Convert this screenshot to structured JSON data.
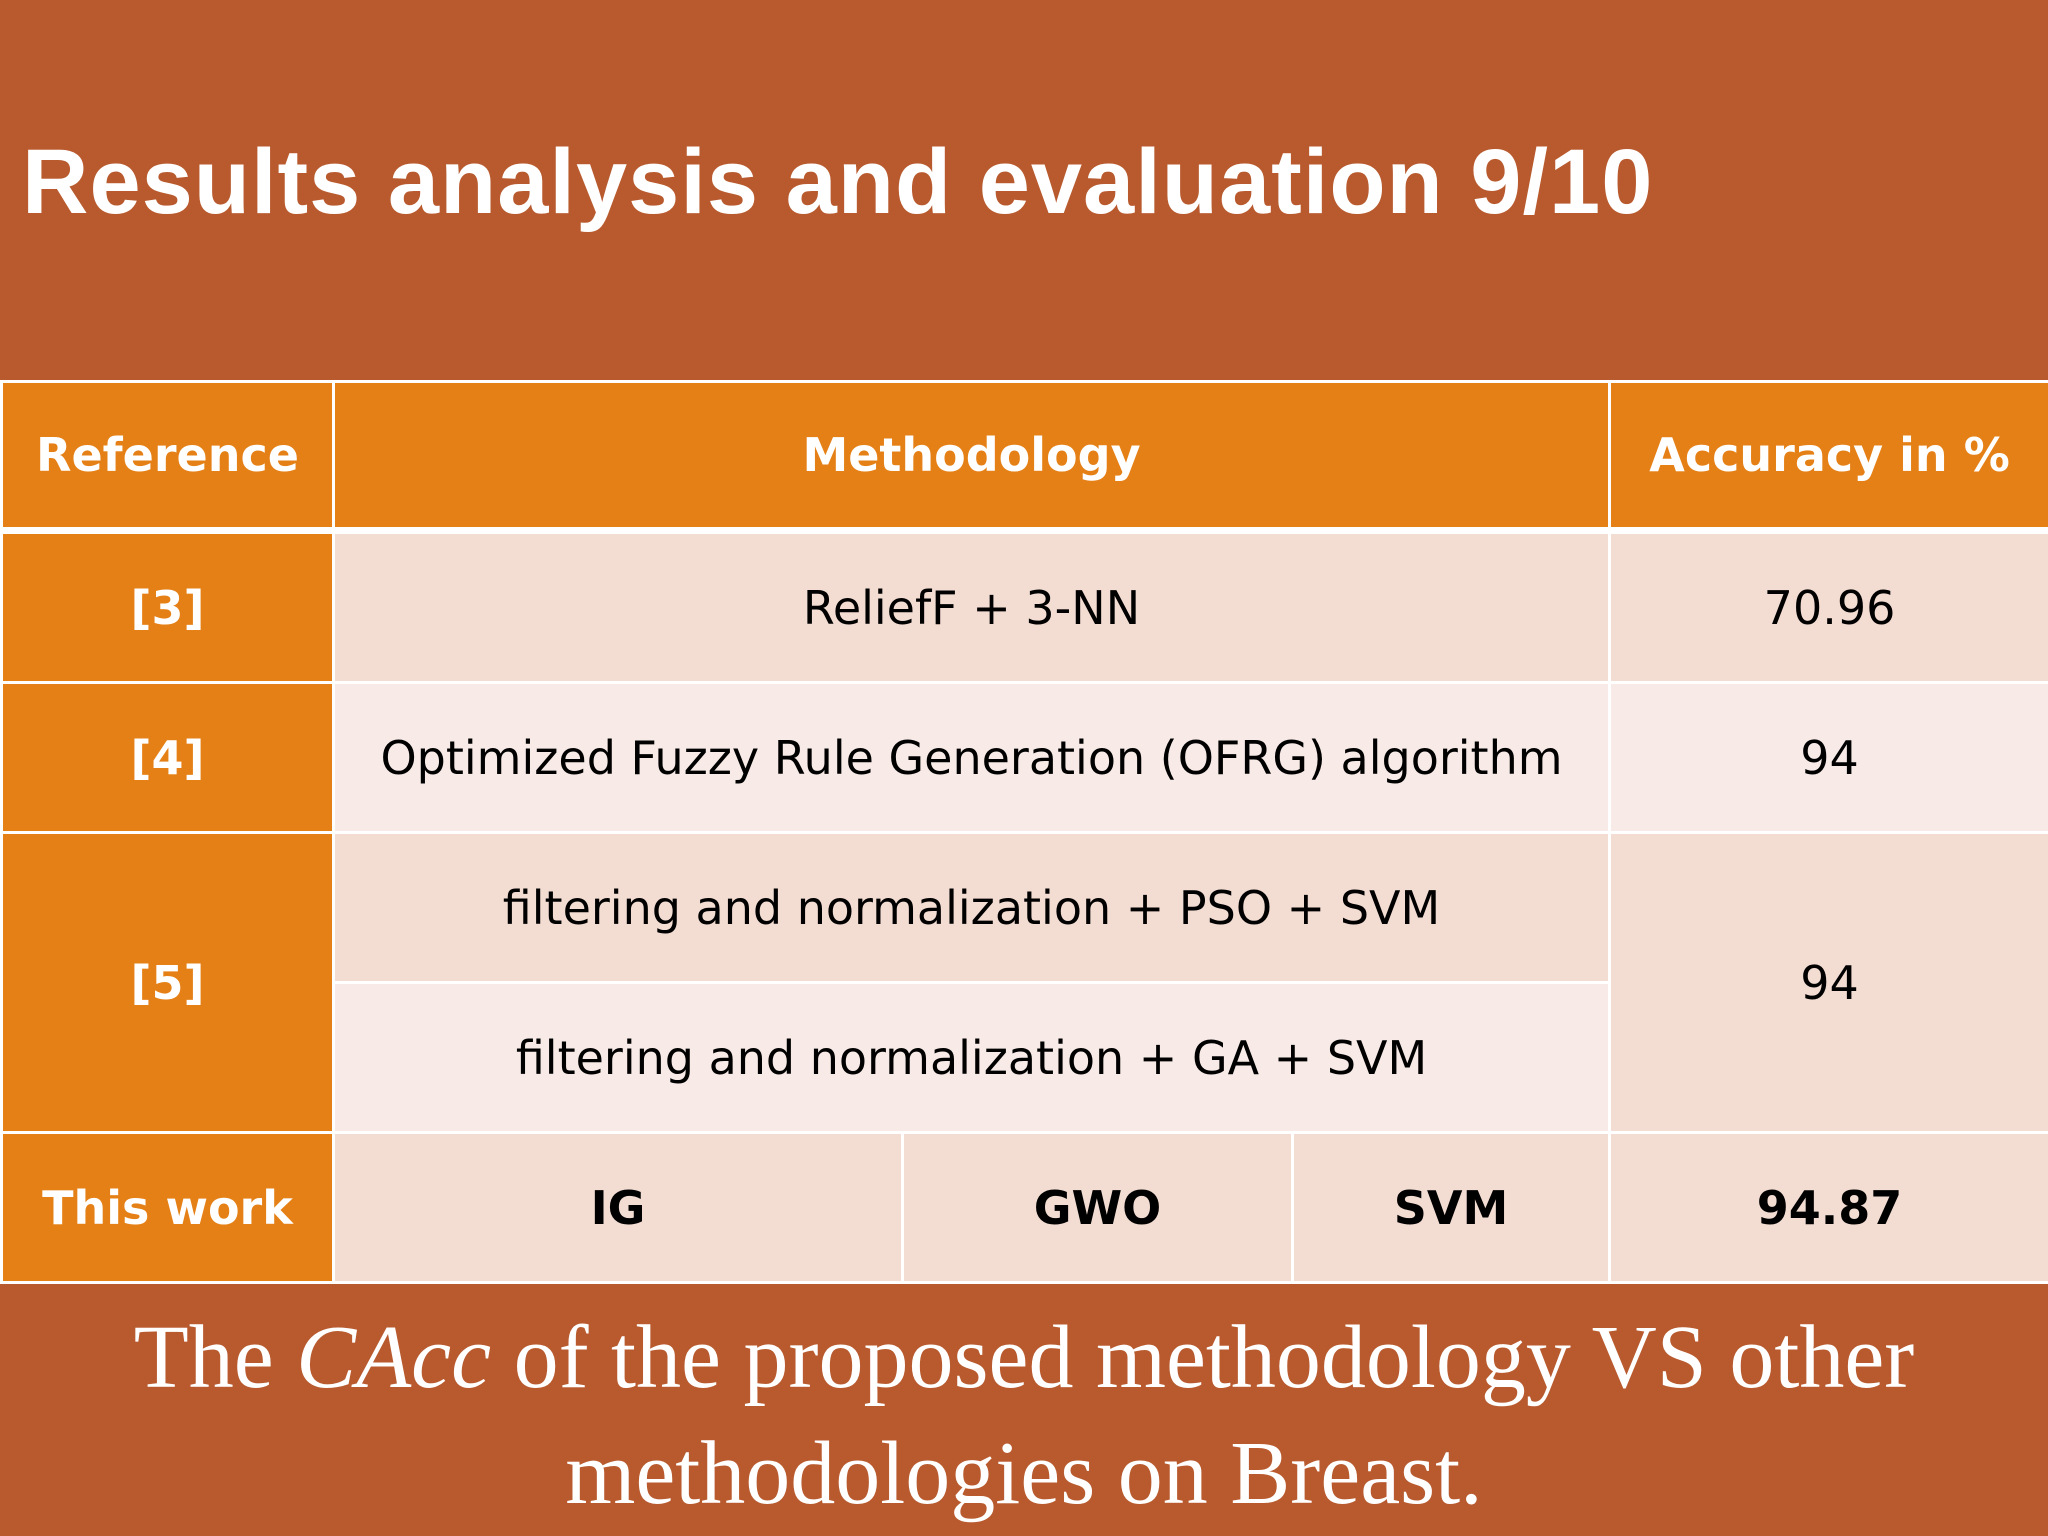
{
  "slide": {
    "title": "Results analysis and evaluation 9/10"
  },
  "table": {
    "headers": {
      "reference": "Reference",
      "methodology": "Methodology",
      "accuracy": "Accuracy in %"
    },
    "rows": [
      {
        "reference": "[3]",
        "methodology": "ReliefF + 3-NN",
        "accuracy": "70.96"
      },
      {
        "reference": "[4]",
        "methodology": "Optimized Fuzzy Rule Generation (OFRG) algorithm",
        "accuracy": "94"
      },
      {
        "reference": "[5]",
        "methodologies": [
          "filtering and normalization + PSO + SVM",
          "filtering and normalization + GA + SVM"
        ],
        "accuracy": "94"
      },
      {
        "reference": "This work",
        "steps": [
          "IG",
          "GWO",
          "SVM"
        ],
        "accuracy": "94.87"
      }
    ]
  },
  "caption": {
    "before": "The ",
    "italic": "CAcc",
    "line1_after": " of the proposed methodology VS other",
    "line2": "methodologies on Breast."
  }
}
